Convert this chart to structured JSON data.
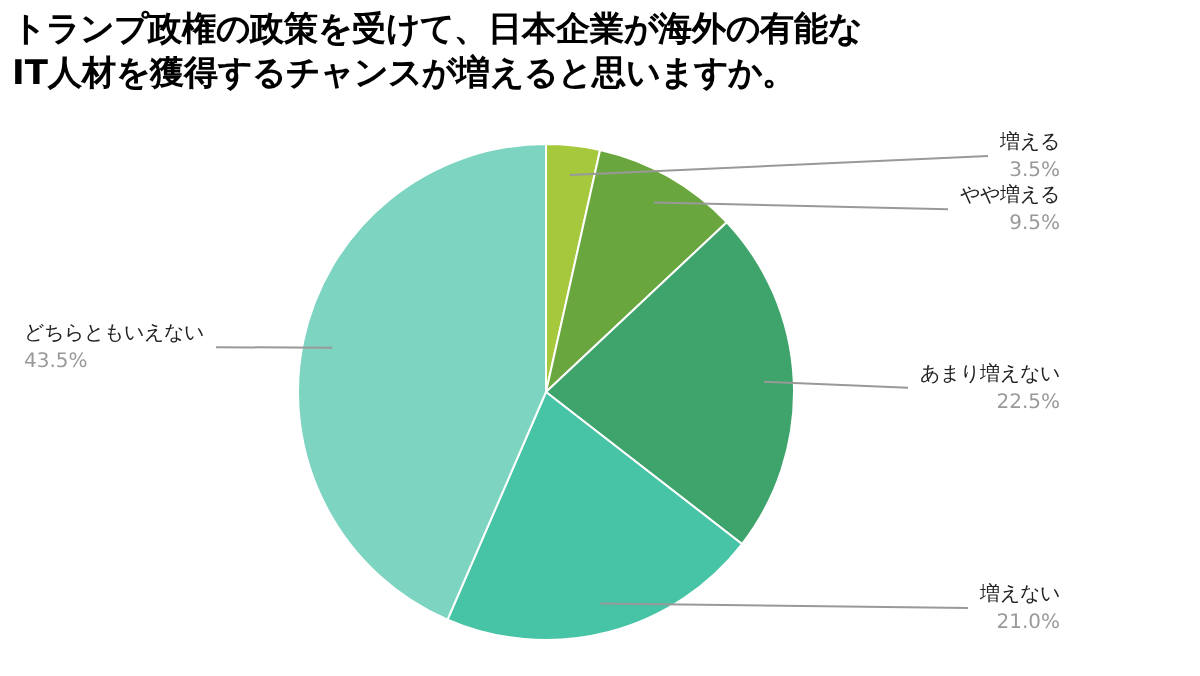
{
  "chart_data": {
    "type": "pie",
    "title": "トランプ政権の政策を受けて、日本企業が海外の有能な\nIT人材を獲得するチャンスが増えると思いますか。",
    "categories": [
      "増える",
      "やや増える",
      "あまり増えない",
      "増えない",
      "どちらともいえない"
    ],
    "values": [
      3.5,
      9.5,
      22.5,
      21.0,
      43.5
    ],
    "value_labels": [
      "3.5%",
      "9.5%",
      "22.5%",
      "21.0%",
      "43.5%"
    ],
    "colors": [
      "#a5c83c",
      "#6aa63e",
      "#3ea46c",
      "#47c3a5",
      "#7dd4c1"
    ]
  }
}
